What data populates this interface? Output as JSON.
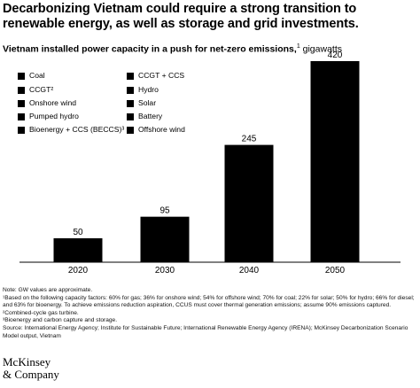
{
  "title": "Decarbonizing Vietnam could require a strong transition to renewable energy, as well as storage and grid investments.",
  "subtitle": {
    "bold": "Vietnam installed power capacity in a push for net-zero emissions,",
    "sup": "1",
    "unit": " gigawatts"
  },
  "chart_data": {
    "type": "bar",
    "categories": [
      "2020",
      "2030",
      "2040",
      "2050"
    ],
    "values": [
      50,
      95,
      245,
      420
    ],
    "data_labels": [
      "50",
      "95",
      "245",
      "420"
    ],
    "ylim": [
      0,
      420
    ],
    "bar_color": "#000000",
    "legend_placement": "top-left",
    "legend": [
      "Coal",
      "CCGT²",
      "Onshore wind",
      "Pumped hydro",
      "Bioenergy + CCS (BECCS)³",
      "CCGT + CCS",
      "Hydro",
      "Solar",
      "Battery",
      "Offshore wind"
    ],
    "grid": false
  },
  "notes": [
    "Note: GW values are approximate.",
    "¹Based on the following capacity factors: 60% for gas; 36% for onshore wind; 54% for offshore wind; 70% for coal; 22% for solar; 50% for hydro; 66% for diesel; and 63% for bioenergy. To achieve emissions reduction aspiration, CCUS must cover thermal generation emissions; assume 90% emissions captured.",
    "²Combined-cycle gas turbine.",
    "³Bioenergy and carbon capture and storage.",
    "Source: International Energy Agency; Institute for Sustainable Future; International Renewable Energy Agency (IRENA); McKinsey Decarbonization Scenario Model output, Vietnam"
  ],
  "logo": [
    "McKinsey",
    "& Company"
  ]
}
